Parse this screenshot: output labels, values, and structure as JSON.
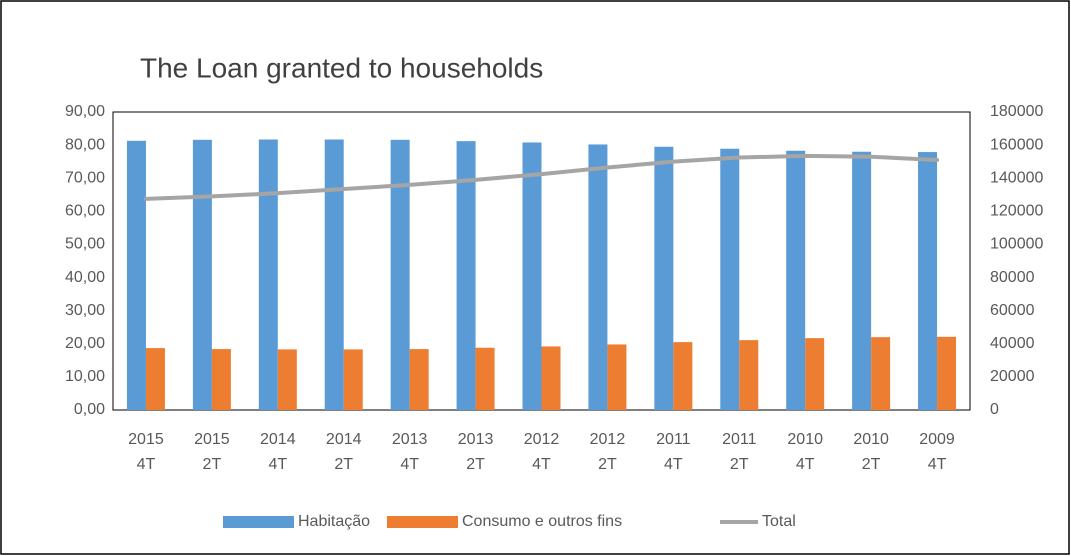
{
  "chart_data": {
    "type": "bar_line",
    "title": "The Loan granted to households",
    "categories": [
      [
        "2015",
        "4T"
      ],
      [
        "2015",
        "2T"
      ],
      [
        "2014",
        "4T"
      ],
      [
        "2014",
        "2T"
      ],
      [
        "2013",
        "4T"
      ],
      [
        "2013",
        "2T"
      ],
      [
        "2012",
        "4T"
      ],
      [
        "2012",
        "2T"
      ],
      [
        "2011",
        "4T"
      ],
      [
        "2011",
        "2T"
      ],
      [
        "2010",
        "4T"
      ],
      [
        "2010",
        "2T"
      ],
      [
        "2009",
        "4T"
      ]
    ],
    "series": [
      {
        "name": "Habitação",
        "color": "#5b9bd5",
        "type": "bar",
        "values": [
          81.3,
          81.6,
          81.7,
          81.7,
          81.6,
          81.2,
          80.8,
          80.2,
          79.5,
          78.9,
          78.3,
          78.0,
          77.9
        ]
      },
      {
        "name": "Consumo e outros fins",
        "color": "#ed7d31",
        "type": "bar",
        "values": [
          18.7,
          18.4,
          18.3,
          18.3,
          18.4,
          18.8,
          19.2,
          19.8,
          20.5,
          21.1,
          21.7,
          22.0,
          22.1
        ]
      },
      {
        "name": "Total",
        "color": "#a5a5a5",
        "type": "line",
        "axis": "y2",
        "values": [
          127500,
          129000,
          131000,
          133500,
          136000,
          139000,
          142500,
          146500,
          150000,
          152500,
          153500,
          153000,
          151000
        ]
      }
    ],
    "ylim": [
      0,
      90
    ],
    "yticks": [
      {
        "value": 0,
        "label": "0,00"
      },
      {
        "value": 10,
        "label": "10,00"
      },
      {
        "value": 20,
        "label": "20,00"
      },
      {
        "value": 30,
        "label": "30,00"
      },
      {
        "value": 40,
        "label": "40,00"
      },
      {
        "value": 50,
        "label": "50,00"
      },
      {
        "value": 60,
        "label": "60,00"
      },
      {
        "value": 70,
        "label": "70,00"
      },
      {
        "value": 80,
        "label": "80,00"
      },
      {
        "value": 90,
        "label": "90,00"
      }
    ],
    "y2lim": [
      0,
      180000
    ],
    "y2ticks": [
      0,
      20000,
      40000,
      60000,
      80000,
      100000,
      120000,
      140000,
      160000,
      180000
    ],
    "legend": "bottom"
  }
}
